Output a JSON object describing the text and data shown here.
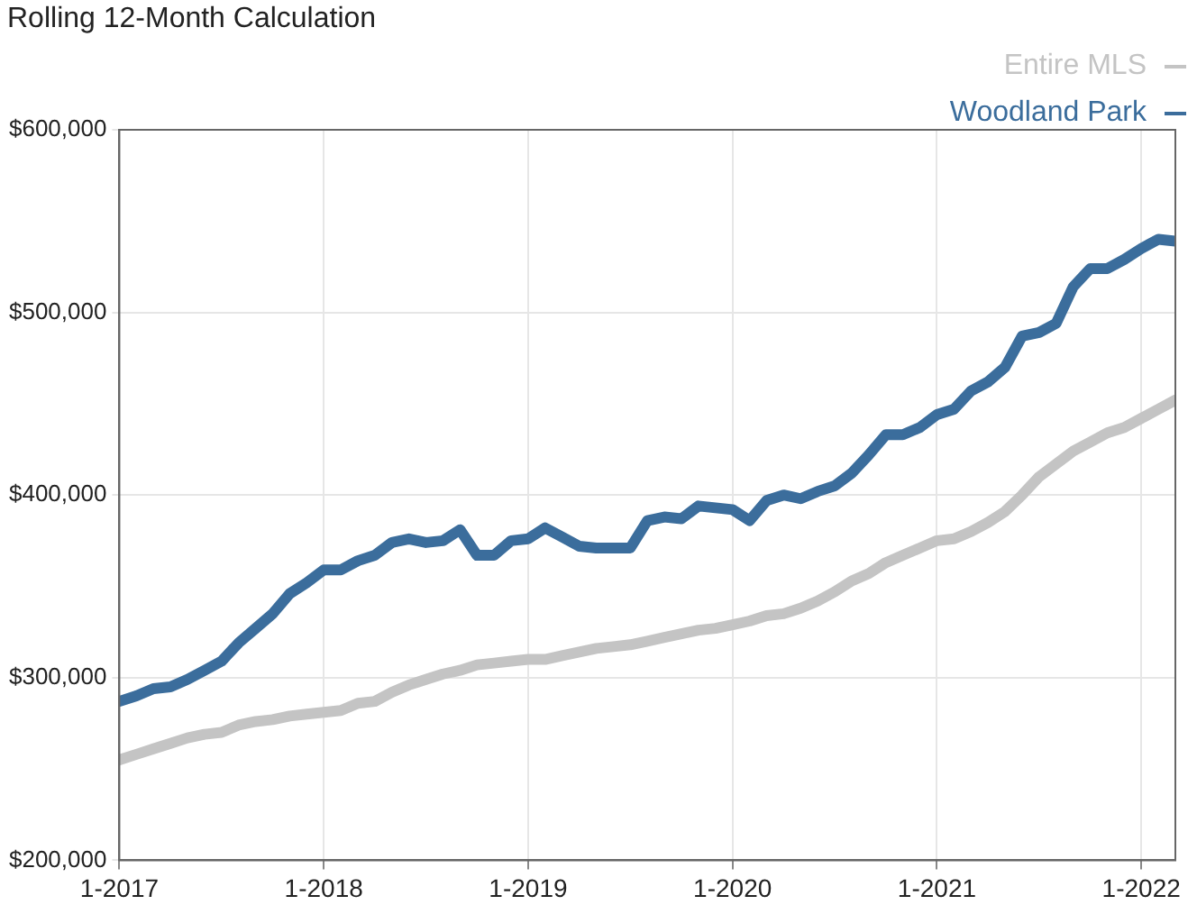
{
  "chart_data": {
    "type": "line",
    "title": "Rolling 12-Month Calculation",
    "x": [
      "2017-01",
      "2017-02",
      "2017-03",
      "2017-04",
      "2017-05",
      "2017-06",
      "2017-07",
      "2017-08",
      "2017-09",
      "2017-10",
      "2017-11",
      "2017-12",
      "2018-01",
      "2018-02",
      "2018-03",
      "2018-04",
      "2018-05",
      "2018-06",
      "2018-07",
      "2018-08",
      "2018-09",
      "2018-10",
      "2018-11",
      "2018-12",
      "2019-01",
      "2019-02",
      "2019-03",
      "2019-04",
      "2019-05",
      "2019-06",
      "2019-07",
      "2019-08",
      "2019-09",
      "2019-10",
      "2019-11",
      "2019-12",
      "2020-01",
      "2020-02",
      "2020-03",
      "2020-04",
      "2020-05",
      "2020-06",
      "2020-07",
      "2020-08",
      "2020-09",
      "2020-10",
      "2020-11",
      "2020-12",
      "2021-01",
      "2021-02",
      "2021-03",
      "2021-04",
      "2021-05",
      "2021-06",
      "2021-07",
      "2021-08",
      "2021-09",
      "2021-10",
      "2021-11",
      "2021-12",
      "2022-01",
      "2022-02",
      "2022-03"
    ],
    "series": [
      {
        "name": "Entire MLS",
        "color": "#c4c4c4",
        "values": [
          255000,
          258000,
          261000,
          264000,
          267000,
          269000,
          270000,
          274000,
          276000,
          277000,
          279000,
          280000,
          281000,
          282000,
          286000,
          287000,
          292000,
          296000,
          299000,
          302000,
          304000,
          307000,
          308000,
          309000,
          310000,
          310000,
          312000,
          314000,
          316000,
          317000,
          318000,
          320000,
          322000,
          324000,
          326000,
          327000,
          329000,
          331000,
          334000,
          335000,
          338000,
          342000,
          347000,
          353000,
          357000,
          363000,
          367000,
          371000,
          375000,
          376000,
          380000,
          385000,
          391000,
          400000,
          410000,
          417000,
          424000,
          429000,
          434000,
          437000,
          442000,
          447000,
          452000
        ]
      },
      {
        "name": "Woodland Park",
        "color": "#3b6d9c",
        "values": [
          287000,
          290000,
          294000,
          295000,
          299000,
          304000,
          309000,
          319000,
          327000,
          335000,
          346000,
          352000,
          359000,
          359000,
          364000,
          367000,
          374000,
          376000,
          374000,
          375000,
          381000,
          367000,
          367000,
          375000,
          376000,
          382000,
          377000,
          372000,
          371000,
          371000,
          371000,
          386000,
          388000,
          387000,
          394000,
          393000,
          392000,
          386000,
          397000,
          400000,
          398000,
          402000,
          405000,
          412000,
          422000,
          433000,
          433000,
          437000,
          444000,
          447000,
          457000,
          462000,
          470000,
          487000,
          489000,
          494000,
          514000,
          524000,
          524000,
          529000,
          535000,
          540000,
          539000
        ]
      }
    ],
    "xlim": [
      "2017-01",
      "2022-03"
    ],
    "xticks": [
      {
        "value": "2017-01",
        "label": "1-2017"
      },
      {
        "value": "2018-01",
        "label": "1-2018"
      },
      {
        "value": "2019-01",
        "label": "1-2019"
      },
      {
        "value": "2020-01",
        "label": "1-2020"
      },
      {
        "value": "2021-01",
        "label": "1-2021"
      },
      {
        "value": "2022-01",
        "label": "1-2022"
      }
    ],
    "ylim": [
      200000,
      600000
    ],
    "yticks": [
      {
        "value": 200000,
        "label": "$200,000"
      },
      {
        "value": 300000,
        "label": "$300,000"
      },
      {
        "value": 400000,
        "label": "$400,000"
      },
      {
        "value": 500000,
        "label": "$500,000"
      },
      {
        "value": 600000,
        "label": "$600,000"
      }
    ],
    "grid": true,
    "legend": "top right",
    "marker": "none",
    "line_style": "solid"
  }
}
